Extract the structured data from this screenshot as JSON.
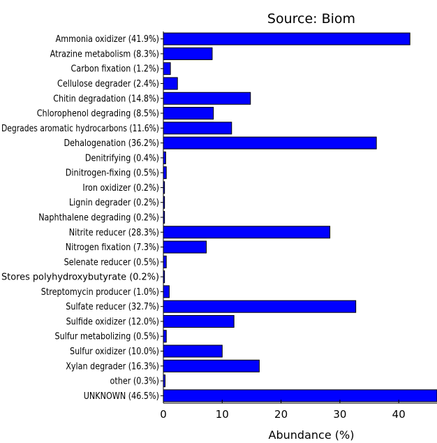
{
  "chart_data": {
    "type": "bar",
    "orientation": "horizontal",
    "title": "Source: Biom",
    "xlabel": "Abundance (%)",
    "ylabel": "",
    "xlim": [
      0,
      46.5
    ],
    "xticks": [
      0,
      10,
      20,
      30,
      40
    ],
    "grid": false,
    "bar_color": "#0000ff",
    "categories": [
      "Ammonia oxidizer (41.9%)",
      "Atrazine metabolism (8.3%)",
      "Carbon fixation (1.2%)",
      "Cellulose degrader (2.4%)",
      "Chitin degradation (14.8%)",
      "Chlorophenol degrading (8.5%)",
      "Degrades aromatic hydrocarbons (11.6%)",
      "Dehalogenation (36.2%)",
      "Denitrifying (0.4%)",
      "Dinitrogen-fixing (0.5%)",
      "Iron oxidizer (0.2%)",
      "Lignin degrader (0.2%)",
      "Naphthalene degrading (0.2%)",
      "Nitrite reducer (28.3%)",
      "Nitrogen fixation (7.3%)",
      "Selenate reducer (0.5%)",
      "Stores polyhydroxybutyrate (0.2%)",
      "Streptomycin producer (1.0%)",
      "Sulfate reducer (32.7%)",
      "Sulfide oxidizer (12.0%)",
      "Sulfur metabolizing (0.5%)",
      "Sulfur oxidizer (10.0%)",
      "Xylan degrader (16.3%)",
      "other (0.3%)",
      "UNKNOWN (46.5%)"
    ],
    "values": [
      41.9,
      8.3,
      1.2,
      2.4,
      14.8,
      8.5,
      11.6,
      36.2,
      0.4,
      0.5,
      0.2,
      0.2,
      0.2,
      28.3,
      7.3,
      0.5,
      0.2,
      1.0,
      32.7,
      12.0,
      0.5,
      10.0,
      16.3,
      0.3,
      46.5
    ]
  }
}
